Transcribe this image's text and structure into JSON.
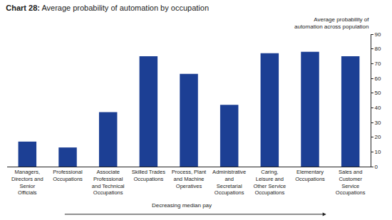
{
  "chart_data": {
    "type": "bar",
    "title": "Chart 28: Average probability of automation by occupation",
    "y_label": "Average probability of automation across population",
    "categories": [
      "Managers, Directors and Senior Officials",
      "Professional Occupations",
      "Associate Professional and Technical Occupations",
      "Skilled Trades Occupations",
      "Process, Plant and Machine Operatives",
      "Administrative and Secretarial Occupations",
      "Caring, Leisure and Other Service Occupations",
      "Elementary Occupations",
      "Sales and Customer Service Occupations"
    ],
    "values": [
      17,
      13,
      37,
      75,
      63,
      42,
      77,
      78,
      75
    ],
    "color": "#1c3f94",
    "ylim": [
      0,
      90
    ],
    "yticks": [
      0,
      10,
      20,
      30,
      40,
      50,
      60,
      70,
      80,
      90
    ],
    "grid": false,
    "annotations": [
      "Decreasing median pay"
    ]
  }
}
